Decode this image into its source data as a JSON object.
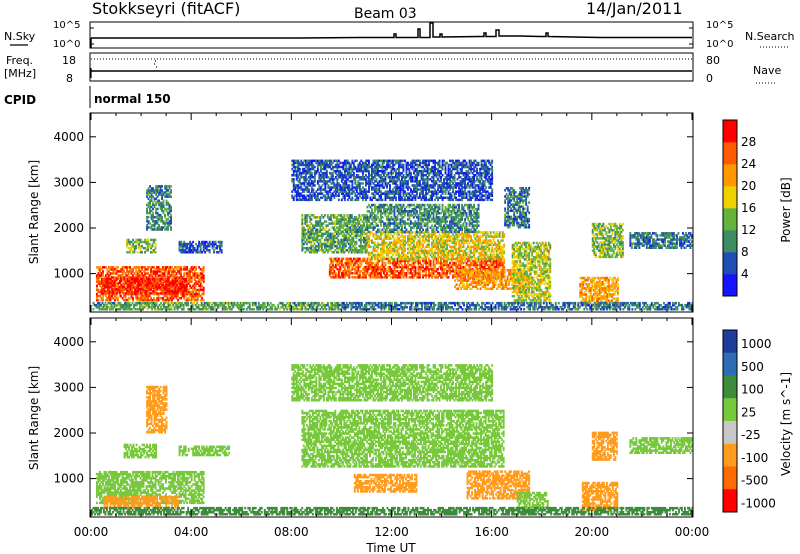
{
  "header": {
    "station": "Stokkseyri (fitACF)",
    "beam": "Beam 03",
    "date": "14/Jan/2011"
  },
  "strip_labels": {
    "nsky": "N.Sky",
    "nsearch": "N.Search",
    "freq": "Freq.",
    "freq_unit": "[MHz]",
    "nave": "Nave",
    "cpid": "CPID",
    "cpid_value": "normal 150",
    "noise_ticks": [
      "10^5",
      "10^0"
    ],
    "freq_ticks": [
      "18",
      "8"
    ],
    "nave_ticks": [
      "80",
      "0"
    ]
  },
  "colors": {
    "trace": "#000000",
    "power_scale": [
      "#1414ff",
      "#1f4fb4",
      "#3c8c64",
      "#64b43c",
      "#f0d000",
      "#ff9800",
      "#ff5a00",
      "#ff0000"
    ],
    "velocity_scale": [
      "#1f3c9c",
      "#2f6cb4",
      "#3c8c3c",
      "#78c83c",
      "#c8c8c8",
      "#ff9c1e",
      "#ff6a00",
      "#ff0000"
    ]
  },
  "chart_data": [
    {
      "type": "heatmap",
      "title": "",
      "xlabel": "Time UT",
      "ylabel": "Slant Range [km]",
      "x_ticks": [
        "00:00",
        "04:00",
        "08:00",
        "12:00",
        "16:00",
        "20:00",
        "00:00"
      ],
      "x_range_hours": [
        0,
        24
      ],
      "y_ticks": [
        "1000",
        "2000",
        "3000",
        "4000"
      ],
      "y_range_km": [
        180,
        4500
      ],
      "colorbar_label": "Power [dB]",
      "colorbar_ticks": [
        "4",
        "8",
        "12",
        "16",
        "20",
        "24",
        "28"
      ],
      "colorbar_range": [
        0,
        32
      ],
      "echo_regions": [
        {
          "t_start": 0.2,
          "t_end": 4.5,
          "r_min": 400,
          "r_max": 1150,
          "db": 26
        },
        {
          "t_start": 0.4,
          "t_end": 3.8,
          "r_min": 550,
          "r_max": 900,
          "db": 30
        },
        {
          "t_start": 1.4,
          "t_end": 2.6,
          "r_min": 1450,
          "r_max": 1750,
          "db": 14
        },
        {
          "t_start": 2.2,
          "t_end": 3.2,
          "r_min": 1950,
          "r_max": 2900,
          "db": 10
        },
        {
          "t_start": 3.5,
          "t_end": 5.2,
          "r_min": 1450,
          "r_max": 1700,
          "db": 6
        },
        {
          "t_start": 0.0,
          "t_end": 10.0,
          "r_min": 200,
          "r_max": 380,
          "db": 12
        },
        {
          "t_start": 8.4,
          "t_end": 11.0,
          "r_min": 1450,
          "r_max": 2300,
          "db": 12
        },
        {
          "t_start": 9.5,
          "t_end": 16.5,
          "r_min": 900,
          "r_max": 1350,
          "db": 26
        },
        {
          "t_start": 11.0,
          "t_end": 16.5,
          "r_min": 1300,
          "r_max": 1900,
          "db": 18
        },
        {
          "t_start": 11.0,
          "t_end": 15.5,
          "r_min": 1900,
          "r_max": 2500,
          "db": 10
        },
        {
          "t_start": 14.5,
          "t_end": 17.5,
          "r_min": 650,
          "r_max": 1100,
          "db": 22
        },
        {
          "t_start": 16.8,
          "t_end": 18.3,
          "r_min": 350,
          "r_max": 1700,
          "db": 16
        },
        {
          "t_start": 16.5,
          "t_end": 17.5,
          "r_min": 2000,
          "r_max": 2900,
          "db": 8
        },
        {
          "t_start": 19.5,
          "t_end": 21.0,
          "r_min": 300,
          "r_max": 900,
          "db": 22
        },
        {
          "t_start": 20.0,
          "t_end": 21.2,
          "r_min": 1350,
          "r_max": 2100,
          "db": 14
        },
        {
          "t_start": 21.5,
          "t_end": 24.0,
          "r_min": 1550,
          "r_max": 1900,
          "db": 8
        },
        {
          "t_start": 10.0,
          "t_end": 24.0,
          "r_min": 200,
          "r_max": 350,
          "db": 8
        },
        {
          "t_start": 8.0,
          "t_end": 16.0,
          "r_min": 2600,
          "r_max": 3500,
          "db": 6
        }
      ]
    },
    {
      "type": "heatmap",
      "title": "",
      "xlabel": "Time UT",
      "ylabel": "Slant Range [km]",
      "x_ticks": [
        "00:00",
        "04:00",
        "08:00",
        "12:00",
        "16:00",
        "20:00",
        "00:00"
      ],
      "x_range_hours": [
        0,
        24
      ],
      "y_ticks": [
        "1000",
        "2000",
        "3000",
        "4000"
      ],
      "y_range_km": [
        180,
        4500
      ],
      "colorbar_label": "Velocity [m s^-1]",
      "colorbar_ticks": [
        "1000",
        "500",
        "100",
        "25",
        "-25",
        "-100",
        "-500",
        "-1000"
      ],
      "colorbar_range": [
        -1000,
        1000
      ],
      "echo_regions": [
        {
          "t_start": 0.2,
          "t_end": 4.5,
          "r_min": 450,
          "r_max": 1150,
          "v": 0
        },
        {
          "t_start": 0.5,
          "t_end": 3.5,
          "r_min": 350,
          "r_max": 600,
          "v": -150
        },
        {
          "t_start": 1.3,
          "t_end": 2.6,
          "r_min": 1450,
          "r_max": 1750,
          "v": 0
        },
        {
          "t_start": 2.2,
          "t_end": 3.0,
          "r_min": 2000,
          "r_max": 3000,
          "v": -250
        },
        {
          "t_start": 3.5,
          "t_end": 5.5,
          "r_min": 1500,
          "r_max": 1700,
          "v": 0
        },
        {
          "t_start": 0.0,
          "t_end": 10.0,
          "r_min": 200,
          "r_max": 350,
          "v": 60
        },
        {
          "t_start": 8.4,
          "t_end": 16.5,
          "r_min": 1250,
          "r_max": 2500,
          "v": 0
        },
        {
          "t_start": 10.5,
          "t_end": 13.0,
          "r_min": 700,
          "r_max": 1100,
          "v": -150
        },
        {
          "t_start": 15.0,
          "t_end": 17.5,
          "r_min": 550,
          "r_max": 1150,
          "v": -300
        },
        {
          "t_start": 17.0,
          "t_end": 18.2,
          "r_min": 350,
          "r_max": 700,
          "v": 0
        },
        {
          "t_start": 19.6,
          "t_end": 21.0,
          "r_min": 300,
          "r_max": 900,
          "v": -200
        },
        {
          "t_start": 20.0,
          "t_end": 21.0,
          "r_min": 1400,
          "r_max": 2000,
          "v": -500
        },
        {
          "t_start": 21.5,
          "t_end": 24.0,
          "r_min": 1550,
          "r_max": 1900,
          "v": 0
        },
        {
          "t_start": 8.0,
          "t_end": 16.0,
          "r_min": 2700,
          "r_max": 3500,
          "v": 0
        },
        {
          "t_start": 10.0,
          "t_end": 24.0,
          "r_min": 200,
          "r_max": 350,
          "v": 60
        }
      ]
    }
  ]
}
